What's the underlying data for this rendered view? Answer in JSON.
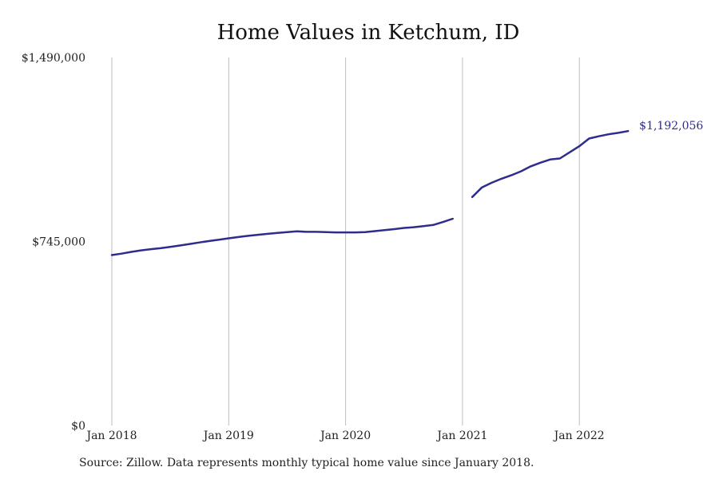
{
  "chart_data": {
    "type": "line",
    "title": "Home Values in Ketchum, ID",
    "ylim": [
      0,
      1490000
    ],
    "y_ticks": [
      {
        "value": 0,
        "label": "$0"
      },
      {
        "value": 745000,
        "label": "$745,000"
      },
      {
        "value": 1490000,
        "label": "$1,490,000"
      }
    ],
    "x_ticks": [
      {
        "value": 2018,
        "label": "Jan 2018"
      },
      {
        "value": 2019,
        "label": "Jan 2019"
      },
      {
        "value": 2020,
        "label": "Jan 2020"
      },
      {
        "value": 2021,
        "label": "Jan 2021"
      },
      {
        "value": 2022,
        "label": "Jan 2022"
      }
    ],
    "x_grid": true,
    "y_grid": false,
    "line_color": "#2e2c8c",
    "segments": [
      [
        {
          "date": "2018-01",
          "value": 690000
        },
        {
          "date": "2018-02",
          "value": 696000
        },
        {
          "date": "2018-03",
          "value": 703000
        },
        {
          "date": "2018-04",
          "value": 709000
        },
        {
          "date": "2018-05",
          "value": 714000
        },
        {
          "date": "2018-06",
          "value": 718000
        },
        {
          "date": "2018-07",
          "value": 723000
        },
        {
          "date": "2018-08",
          "value": 729000
        },
        {
          "date": "2018-09",
          "value": 735000
        },
        {
          "date": "2018-10",
          "value": 741000
        },
        {
          "date": "2018-11",
          "value": 747000
        },
        {
          "date": "2018-12",
          "value": 752000
        },
        {
          "date": "2019-01",
          "value": 758000
        },
        {
          "date": "2019-02",
          "value": 763000
        },
        {
          "date": "2019-03",
          "value": 768000
        },
        {
          "date": "2019-04",
          "value": 772000
        },
        {
          "date": "2019-05",
          "value": 776000
        },
        {
          "date": "2019-06",
          "value": 780000
        },
        {
          "date": "2019-07",
          "value": 783000
        },
        {
          "date": "2019-08",
          "value": 786000
        },
        {
          "date": "2019-09",
          "value": 784000
        },
        {
          "date": "2019-10",
          "value": 784000
        },
        {
          "date": "2019-11",
          "value": 783000
        },
        {
          "date": "2019-12",
          "value": 782000
        },
        {
          "date": "2020-01",
          "value": 782000
        },
        {
          "date": "2020-02",
          "value": 782000
        },
        {
          "date": "2020-03",
          "value": 783000
        },
        {
          "date": "2020-04",
          "value": 787000
        },
        {
          "date": "2020-05",
          "value": 791000
        },
        {
          "date": "2020-06",
          "value": 795000
        },
        {
          "date": "2020-07",
          "value": 800000
        },
        {
          "date": "2020-08",
          "value": 803000
        },
        {
          "date": "2020-09",
          "value": 807000
        },
        {
          "date": "2020-10",
          "value": 812000
        },
        {
          "date": "2020-11",
          "value": 824000
        },
        {
          "date": "2020-12",
          "value": 837000
        }
      ],
      [
        {
          "date": "2021-02",
          "value": 925000
        },
        {
          "date": "2021-03",
          "value": 964000
        },
        {
          "date": "2021-04",
          "value": 983000
        },
        {
          "date": "2021-05",
          "value": 999000
        },
        {
          "date": "2021-06",
          "value": 1013000
        },
        {
          "date": "2021-07",
          "value": 1029000
        },
        {
          "date": "2021-08",
          "value": 1049000
        },
        {
          "date": "2021-09",
          "value": 1064000
        },
        {
          "date": "2021-10",
          "value": 1077000
        },
        {
          "date": "2021-11",
          "value": 1081000
        },
        {
          "date": "2021-12",
          "value": 1106000
        },
        {
          "date": "2022-01",
          "value": 1131000
        },
        {
          "date": "2022-02",
          "value": 1162000
        },
        {
          "date": "2022-03",
          "value": 1171000
        },
        {
          "date": "2022-04",
          "value": 1179000
        },
        {
          "date": "2022-05",
          "value": 1185000
        },
        {
          "date": "2022-06",
          "value": 1192056
        }
      ]
    ],
    "end_label": "$1,192,056",
    "source": "Source: Zillow. Data represents monthly typical home value since January 2018."
  }
}
